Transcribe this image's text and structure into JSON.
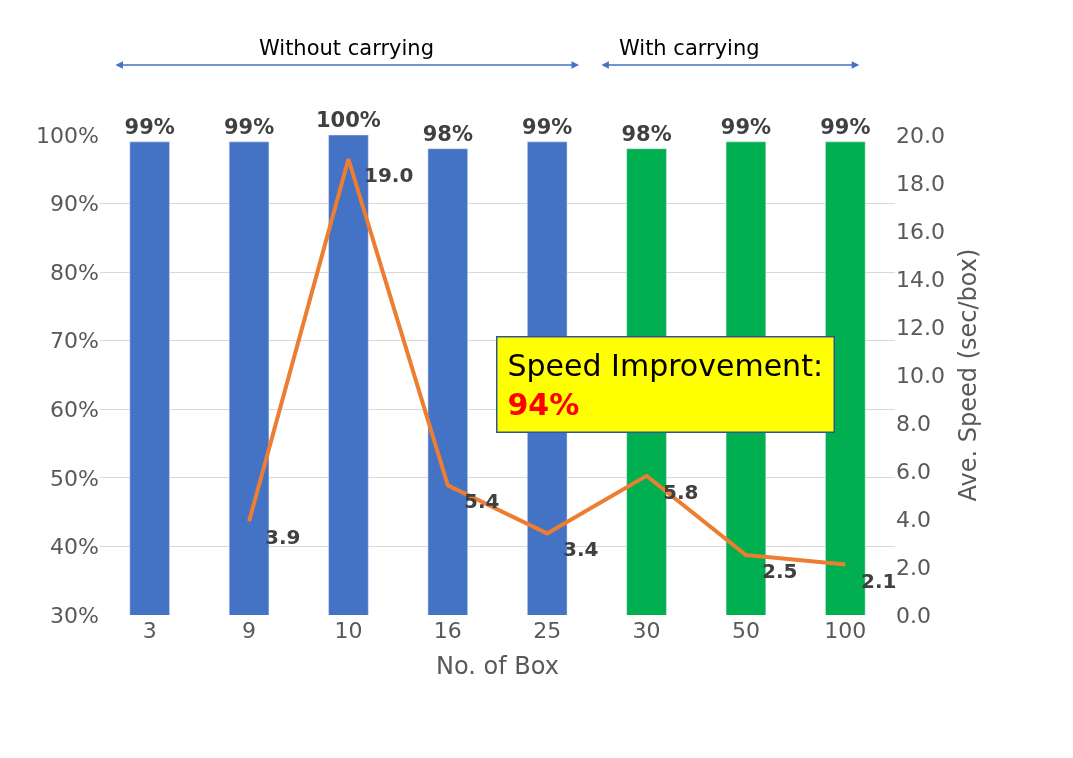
{
  "chart_data": {
    "type": "bar",
    "xlabel": "No. of Box",
    "y2label": "Ave. Speed (sec/box)",
    "categories": [
      "3",
      "9",
      "10",
      "16",
      "25",
      "30",
      "50",
      "100"
    ],
    "series": [
      {
        "colors": [
          "#4472c4",
          "#4472c4",
          "#4472c4",
          "#4472c4",
          "#4472c4",
          "#00b050",
          "#00b050",
          "#00b050"
        ],
        "values": [
          99,
          99,
          100,
          98,
          99,
          98,
          99,
          99
        ],
        "value_labels": [
          "99%",
          "99%",
          "100%",
          "98%",
          "99%",
          "98%",
          "99%",
          "99%"
        ]
      },
      {
        "type": "line",
        "axis": "y2",
        "color": "#ed7d31",
        "values": [
          null,
          3.9,
          19.0,
          5.4,
          3.4,
          5.8,
          2.5,
          2.1
        ],
        "value_labels": [
          null,
          "3.9",
          "19.0",
          "5.4",
          "3.4",
          "5.8",
          "2.5",
          "2.1"
        ]
      }
    ],
    "ylim": [
      30,
      100
    ],
    "yticks": [
      {
        "value": 30,
        "label": "30%"
      },
      {
        "value": 40,
        "label": "40%"
      },
      {
        "value": 50,
        "label": "50%"
      },
      {
        "value": 60,
        "label": "60%"
      },
      {
        "value": 70,
        "label": "70%"
      },
      {
        "value": 80,
        "label": "80%"
      },
      {
        "value": 90,
        "label": "90%"
      },
      {
        "value": 100,
        "label": "100%"
      }
    ],
    "y2lim": [
      0,
      20
    ],
    "y2ticks": [
      {
        "value": 0,
        "label": "0.0"
      },
      {
        "value": 2,
        "label": "2.0"
      },
      {
        "value": 4,
        "label": "4.0"
      },
      {
        "value": 6,
        "label": "6.0"
      },
      {
        "value": 8,
        "label": "8.0"
      },
      {
        "value": 10,
        "label": "10.0"
      },
      {
        "value": 12,
        "label": "12.0"
      },
      {
        "value": 14,
        "label": "14.0"
      },
      {
        "value": 16,
        "label": "16.0"
      },
      {
        "value": 18,
        "label": "18.0"
      },
      {
        "value": 20,
        "label": "20.0"
      }
    ],
    "grid": "y",
    "marker": "none",
    "annotations": [
      "Without carrying",
      "With carrying",
      "Speed Improvement:",
      "94%"
    ]
  }
}
